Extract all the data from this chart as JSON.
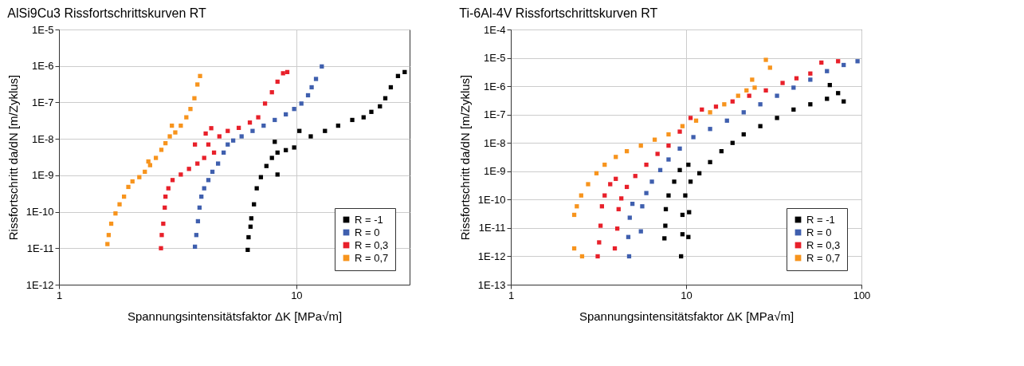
{
  "chart_data": [
    {
      "type": "scatter",
      "title": "AlSi9Cu3 Rissfortschrittskurven RT",
      "xlabel": "Spannungsintensitätsfaktor ΔK [MPa√m]",
      "ylabel": "Rissfortschritt da/dN [m/Zyklus]",
      "log": "xy",
      "xlim": [
        1,
        30
      ],
      "xticks": [
        1,
        10
      ],
      "ylim": [
        1e-12,
        1e-05
      ],
      "yticks": [
        {
          "value": 1e-12,
          "label": "1E-12"
        },
        {
          "value": 1e-11,
          "label": "1E-11"
        },
        {
          "value": 1e-10,
          "label": "1E-10"
        },
        {
          "value": 1e-09,
          "label": "1E-9"
        },
        {
          "value": 1e-08,
          "label": "1E-8"
        },
        {
          "value": 1e-07,
          "label": "1E-7"
        },
        {
          "value": 1e-06,
          "label": "1E-6"
        },
        {
          "value": 1e-05,
          "label": "1E-5"
        }
      ],
      "grid": true,
      "legend": "bottom right",
      "marker": "square",
      "series": [
        {
          "name": "R = -1",
          "color": "#000000",
          "x": [
            6.24,
            6.29,
            6.41,
            6.46,
            6.63,
            6.81,
            7.09,
            7.48,
            7.89,
            8.33,
            9.03,
            9.79,
            8.11,
            10.3,
            8.33,
            11.5,
            13.2,
            15.0,
            17.2,
            19.2,
            20.7,
            22.5,
            23.7,
            25.0,
            26.8,
            28.6
          ],
          "values": [
            9e-12,
            2e-11,
            3.9e-11,
            6.6e-11,
            1.6e-10,
            4.4e-10,
            8.9e-10,
            1.8e-09,
            3e-09,
            4.2e-09,
            4.9e-09,
            5.8e-09,
            8.3e-09,
            1.65e-08,
            1.05e-09,
            1.17e-08,
            1.65e-08,
            2.3e-08,
            3.3e-08,
            3.9e-08,
            5.5e-08,
            7.8e-08,
            1.3e-07,
            2.6e-07,
            5.3e-07,
            6.8e-07
          ]
        },
        {
          "name": "R = 0",
          "color": "#3f5fae",
          "x": [
            3.74,
            3.79,
            3.85,
            3.91,
            3.98,
            4.09,
            4.26,
            4.43,
            4.68,
            4.94,
            5.14,
            5.42,
            5.88,
            6.54,
            7.28,
            8.11,
            9.03,
            9.79,
            10.5,
            11.2,
            11.6,
            12.1,
            12.8
          ],
          "values": [
            1.1e-11,
            2.3e-11,
            5.5e-11,
            1.3e-10,
            2.6e-10,
            4.4e-10,
            7.4e-10,
            1.25e-09,
            2.1e-09,
            4.2e-09,
            7e-09,
            9e-09,
            1.17e-08,
            1.65e-08,
            2.3e-08,
            3.3e-08,
            4.7e-08,
            6.6e-08,
            9.3e-08,
            1.57e-07,
            2.6e-07,
            4.4e-07,
            9.7e-07
          ]
        },
        {
          "name": "R = 0,3",
          "color": "#e8202a",
          "x": [
            2.69,
            2.71,
            2.75,
            2.79,
            2.81,
            2.89,
            3.01,
            3.26,
            3.53,
            3.83,
            4.09,
            4.26,
            4.15,
            4.38,
            4.74,
            5.14,
            5.72,
            6.37,
            6.91,
            7.38,
            7.89,
            8.33,
            8.79,
            9.16,
            3.74,
            4.5
          ],
          "values": [
            1e-11,
            2.3e-11,
            4.7e-11,
            1.3e-10,
            2.6e-10,
            4.4e-10,
            7.4e-10,
            1.05e-09,
            1.5e-09,
            2.1e-09,
            3e-09,
            7e-09,
            1.4e-08,
            1.96e-08,
            1.17e-08,
            1.65e-08,
            2e-08,
            2.8e-08,
            3.9e-08,
            9.3e-08,
            1.9e-07,
            3.7e-07,
            6.3e-07,
            6.8e-07,
            7e-09,
            4.2e-09
          ]
        },
        {
          "name": "R = 0,7",
          "color": "#f7941d",
          "x": [
            1.6,
            1.62,
            1.66,
            1.73,
            1.8,
            1.88,
            1.96,
            2.04,
            2.18,
            2.3,
            2.42,
            2.56,
            2.7,
            2.81,
            2.93,
            3.09,
            3.26,
            3.44,
            3.58,
            3.72,
            3.83,
            3.93,
            2.99,
            2.38
          ],
          "values": [
            1.3e-11,
            2.3e-11,
            4.7e-11,
            9e-11,
            1.6e-10,
            2.6e-10,
            4.8e-10,
            6.8e-10,
            8.9e-10,
            1.25e-09,
            1.9e-09,
            3e-09,
            5e-09,
            7.6e-09,
            1.17e-08,
            1.5e-08,
            2.3e-08,
            3.9e-08,
            6.6e-08,
            1.3e-07,
            3.1e-07,
            5.3e-07,
            2.3e-08,
            2.4e-09
          ]
        }
      ]
    },
    {
      "type": "scatter",
      "title": "Ti-6Al-4V Rissfortschrittskurven RT",
      "xlabel": "Spannungsintensitätsfaktor ΔK [MPa√m]",
      "ylabel": "Rissfortschritt da/dN [m/Zyklus]",
      "log": "xy",
      "xlim": [
        1,
        100
      ],
      "xticks": [
        1,
        10,
        100
      ],
      "ylim": [
        1e-13,
        0.0001
      ],
      "yticks": [
        {
          "value": 1e-13,
          "label": "1E-13"
        },
        {
          "value": 1e-12,
          "label": "1E-12"
        },
        {
          "value": 1e-11,
          "label": "1E-11"
        },
        {
          "value": 1e-10,
          "label": "1E-10"
        },
        {
          "value": 1e-09,
          "label": "1E-9"
        },
        {
          "value": 1e-08,
          "label": "1E-8"
        },
        {
          "value": 1e-07,
          "label": "1E-7"
        },
        {
          "value": 1e-06,
          "label": "1E-6"
        },
        {
          "value": 1e-05,
          "label": "1E-5"
        },
        {
          "value": 0.0001,
          "label": "1E-4"
        }
      ],
      "grid": true,
      "legend": "bottom right",
      "marker": "square",
      "series": [
        {
          "name": "R = -1",
          "color": "#000000",
          "x": [
            9.36,
            7.52,
            7.61,
            7.66,
            7.94,
            8.55,
            9.2,
            10.3,
            9.53,
            10.3,
            9.53,
            10.4,
            9.89,
            10.6,
            11.9,
            13.7,
            15.9,
            18.4,
            21.3,
            26.5,
            33.0,
            41.0,
            51.1,
            63.6,
            73.6,
            66.0,
            79.2
          ],
          "values": [
            1e-12,
            4.3e-12,
            1.2e-11,
            4.6e-11,
            1.4e-10,
            4.3e-10,
            1.1e-09,
            1.7e-09,
            6e-12,
            4.8e-12,
            2.9e-11,
            3.6e-11,
            1.4e-10,
            4.3e-10,
            8.5e-10,
            2.1e-09,
            5.1e-09,
            1e-08,
            2e-08,
            3.9e-08,
            7.6e-08,
            1.5e-07,
            2.3e-07,
            3.6e-07,
            5.7e-07,
            1.1e-06,
            2.9e-07
          ]
        },
        {
          "name": "R = 0",
          "color": "#3f5fae",
          "x": [
            4.73,
            4.68,
            4.77,
            4.94,
            5.52,
            5.62,
            5.93,
            6.38,
            7.12,
            7.94,
            9.2,
            11.0,
            13.7,
            17.1,
            21.3,
            26.5,
            33.0,
            41.0,
            51.1,
            63.6,
            79.2,
            95.0
          ],
          "values": [
            1e-12,
            4.8e-12,
            2.3e-11,
            7.1e-11,
            7.6e-12,
            5.8e-11,
            1.7e-10,
            4.3e-10,
            1.1e-09,
            2.6e-09,
            6.3e-09,
            1.6e-08,
            3.1e-08,
            6.1e-08,
            1.2e-07,
            2.3e-07,
            4.6e-07,
            8.9e-07,
            1.7e-06,
            3.4e-06,
            5.6e-06,
            7.6e-06
          ]
        },
        {
          "name": "R = 0,3",
          "color": "#e8202a",
          "x": [
            3.13,
            3.19,
            3.25,
            3.31,
            3.43,
            3.69,
            3.97,
            3.92,
            4.05,
            4.12,
            4.27,
            4.59,
            5.13,
            5.93,
            6.87,
            7.94,
            9.2,
            10.6,
            12.3,
            14.8,
            18.4,
            22.9,
            28.5,
            35.5,
            42.6,
            51.1,
            59.1,
            73.6
          ],
          "values": [
            1e-12,
            3.1e-12,
            1.2e-11,
            5.8e-11,
            1.4e-10,
            3.5e-10,
            5.4e-10,
            1.9e-12,
            9.5e-12,
            4.6e-11,
            1.1e-10,
            2.8e-10,
            6.8e-10,
            1.7e-09,
            4.1e-09,
            8e-09,
            2.5e-08,
            7.6e-08,
            1.5e-07,
            1.9e-07,
            2.9e-07,
            4.6e-07,
            7.1e-07,
            1.3e-06,
            1.9e-06,
            2.8e-06,
            6.8e-06,
            7.6e-06
          ]
        },
        {
          "name": "R = 0,7",
          "color": "#f7941d",
          "x": [
            2.55,
            2.3,
            2.3,
            2.38,
            2.52,
            2.76,
            3.08,
            3.43,
            3.97,
            4.59,
            5.52,
            6.62,
            7.94,
            9.53,
            11.4,
            13.7,
            16.5,
            19.8,
            22.1,
            24.6,
            23.8,
            28.5,
            30.1
          ],
          "values": [
            1e-12,
            1.9e-12,
            2.9e-11,
            5.8e-11,
            1.4e-10,
            3.5e-10,
            8.5e-10,
            1.7e-09,
            3.2e-09,
            5.1e-09,
            8e-09,
            1.3e-08,
            2e-08,
            3.9e-08,
            6.1e-08,
            1.2e-07,
            2.3e-07,
            4.6e-07,
            7.1e-07,
            8.9e-07,
            1.7e-06,
            8.5e-06,
            4.5e-06
          ]
        }
      ]
    }
  ]
}
